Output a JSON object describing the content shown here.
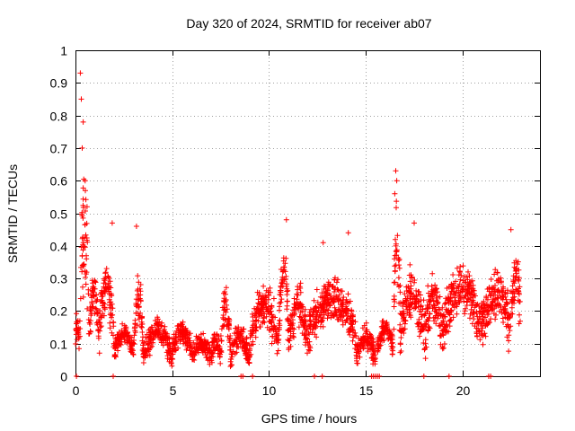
{
  "chart_data": {
    "type": "scatter",
    "title": "Day 320 of 2024, SRMTID for receiver ab07",
    "xlabel": "GPS time / hours",
    "ylabel": "SRMTID / TECUs",
    "xlim": [
      0,
      24
    ],
    "ylim": [
      0,
      1
    ],
    "xticks": [
      0,
      5,
      10,
      15,
      20
    ],
    "yticks": [
      0,
      0.1,
      0.2,
      0.3,
      0.4,
      0.5,
      0.6,
      0.7,
      0.8,
      0.9,
      1
    ],
    "x_tick_labels": [
      "0",
      "5",
      "10",
      "15",
      "20"
    ],
    "y_tick_labels": [
      "0",
      "0.1",
      "0.2",
      "0.3",
      "0.4",
      "0.5",
      "0.6",
      "0.7",
      "0.8",
      "0.9",
      "1"
    ],
    "grid": true,
    "marker": "+",
    "color": "#ff0000",
    "series_name": "SRMTID",
    "peaks": [
      {
        "x": 0.25,
        "y": 0.93
      },
      {
        "x": 0.3,
        "y": 0.85
      },
      {
        "x": 0.4,
        "y": 0.78
      },
      {
        "x": 0.35,
        "y": 0.7
      },
      {
        "x": 0.5,
        "y": 0.6
      },
      {
        "x": 0.6,
        "y": 0.52
      },
      {
        "x": 1.9,
        "y": 0.47
      },
      {
        "x": 3.15,
        "y": 0.46
      },
      {
        "x": 10.9,
        "y": 0.48
      },
      {
        "x": 12.8,
        "y": 0.41
      },
      {
        "x": 14.1,
        "y": 0.44
      },
      {
        "x": 16.55,
        "y": 0.63
      },
      {
        "x": 16.6,
        "y": 0.6
      },
      {
        "x": 16.5,
        "y": 0.56
      },
      {
        "x": 17.5,
        "y": 0.47
      },
      {
        "x": 22.5,
        "y": 0.45
      }
    ],
    "zero_points_x": [
      0.05,
      1.95,
      8.55,
      8.65,
      9.15,
      12.35,
      12.75,
      15.3,
      15.4,
      15.5,
      15.6,
      15.7,
      18.0,
      19.3,
      21.35,
      21.45
    ]
  }
}
